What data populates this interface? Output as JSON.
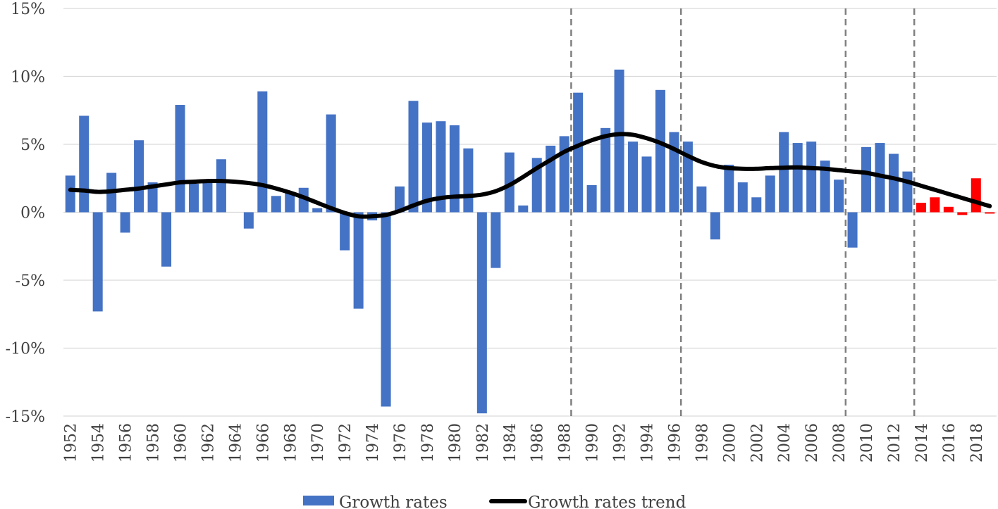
{
  "chart_data": {
    "type": "bar",
    "title": "",
    "xlabel": "",
    "ylabel": "",
    "ylim": [
      -15,
      15
    ],
    "y_ticks": [
      15,
      10,
      5,
      0,
      -5,
      -10,
      -15
    ],
    "y_tick_labels": [
      "15%",
      "10%",
      "5%",
      "0%",
      "-5%",
      "-10%",
      "-15%"
    ],
    "x_tick_labels": [
      "1952",
      "1954",
      "1956",
      "1958",
      "1960",
      "1962",
      "1964",
      "1966",
      "1968",
      "1970",
      "1972",
      "1974",
      "1976",
      "1978",
      "1980",
      "1982",
      "1984",
      "1986",
      "1988",
      "1990",
      "1992",
      "1994",
      "1996",
      "1998",
      "2000",
      "2002",
      "2004",
      "2006",
      "2008",
      "2010",
      "2012",
      "2014",
      "2016",
      "2018"
    ],
    "grid": "horizontal",
    "legend_position": "bottom",
    "colors": {
      "bars": "#4472C4",
      "highlight_bars": "#FF0000",
      "trend": "#000000",
      "vlines": "#808080",
      "grid": "#D9D9D9"
    },
    "highlight_from_year": 2014,
    "vertical_dashed_lines_at_years": [
      1989,
      1997,
      2009,
      2014
    ],
    "series": [
      {
        "name": "Growth rates",
        "type": "bar",
        "x": [
          1952,
          1953,
          1954,
          1955,
          1956,
          1957,
          1958,
          1959,
          1960,
          1961,
          1962,
          1963,
          1964,
          1965,
          1966,
          1967,
          1968,
          1969,
          1970,
          1971,
          1972,
          1973,
          1974,
          1975,
          1976,
          1977,
          1978,
          1979,
          1980,
          1981,
          1982,
          1983,
          1984,
          1985,
          1986,
          1987,
          1988,
          1989,
          1990,
          1991,
          1992,
          1993,
          1994,
          1995,
          1996,
          1997,
          1998,
          1999,
          2000,
          2001,
          2002,
          2003,
          2004,
          2005,
          2006,
          2007,
          2008,
          2009,
          2010,
          2011,
          2012,
          2013,
          2014,
          2015,
          2016,
          2017,
          2018,
          2019
        ],
        "values": [
          2.7,
          7.1,
          -7.3,
          2.9,
          -1.5,
          5.3,
          2.2,
          -4.0,
          7.9,
          2.1,
          2.2,
          3.9,
          0.0,
          -1.2,
          8.9,
          1.2,
          1.5,
          1.8,
          0.3,
          7.2,
          -2.8,
          -7.1,
          -0.6,
          -14.3,
          1.9,
          8.2,
          6.6,
          6.7,
          6.4,
          4.7,
          -14.8,
          -4.1,
          4.4,
          0.5,
          4.0,
          4.9,
          5.6,
          8.8,
          2.0,
          6.2,
          10.5,
          5.2,
          4.1,
          9.0,
          5.9,
          5.2,
          1.9,
          -2.0,
          3.5,
          2.2,
          1.1,
          2.7,
          5.9,
          5.1,
          5.2,
          3.8,
          2.4,
          -2.6,
          4.8,
          5.1,
          4.3,
          3.0,
          0.7,
          1.1,
          0.4,
          -0.2,
          2.5,
          -0.1
        ]
      },
      {
        "name": "Growth rates trend",
        "type": "line",
        "x": [
          1952,
          1953,
          1954,
          1955,
          1956,
          1957,
          1958,
          1959,
          1960,
          1961,
          1962,
          1963,
          1964,
          1965,
          1966,
          1967,
          1968,
          1969,
          1970,
          1971,
          1972,
          1973,
          1974,
          1975,
          1976,
          1977,
          1978,
          1979,
          1980,
          1981,
          1982,
          1983,
          1984,
          1985,
          1986,
          1987,
          1988,
          1989,
          1990,
          1991,
          1992,
          1993,
          1994,
          1995,
          1996,
          1997,
          1998,
          1999,
          2000,
          2001,
          2002,
          2003,
          2004,
          2005,
          2006,
          2007,
          2008,
          2009,
          2010,
          2011,
          2012,
          2013,
          2014,
          2015,
          2016,
          2017,
          2018,
          2019
        ],
        "values": [
          1.65,
          1.6,
          1.5,
          1.55,
          1.65,
          1.75,
          1.9,
          2.05,
          2.2,
          2.25,
          2.3,
          2.3,
          2.25,
          2.15,
          2.0,
          1.75,
          1.45,
          1.1,
          0.7,
          0.3,
          -0.05,
          -0.3,
          -0.3,
          -0.2,
          0.1,
          0.5,
          0.85,
          1.05,
          1.15,
          1.2,
          1.3,
          1.55,
          2.0,
          2.6,
          3.25,
          3.85,
          4.45,
          4.9,
          5.3,
          5.6,
          5.75,
          5.7,
          5.45,
          5.1,
          4.65,
          4.15,
          3.7,
          3.4,
          3.25,
          3.2,
          3.2,
          3.25,
          3.28,
          3.3,
          3.25,
          3.2,
          3.1,
          3.0,
          2.9,
          2.7,
          2.5,
          2.25,
          1.95,
          1.65,
          1.35,
          1.05,
          0.75,
          0.45
        ]
      }
    ]
  }
}
